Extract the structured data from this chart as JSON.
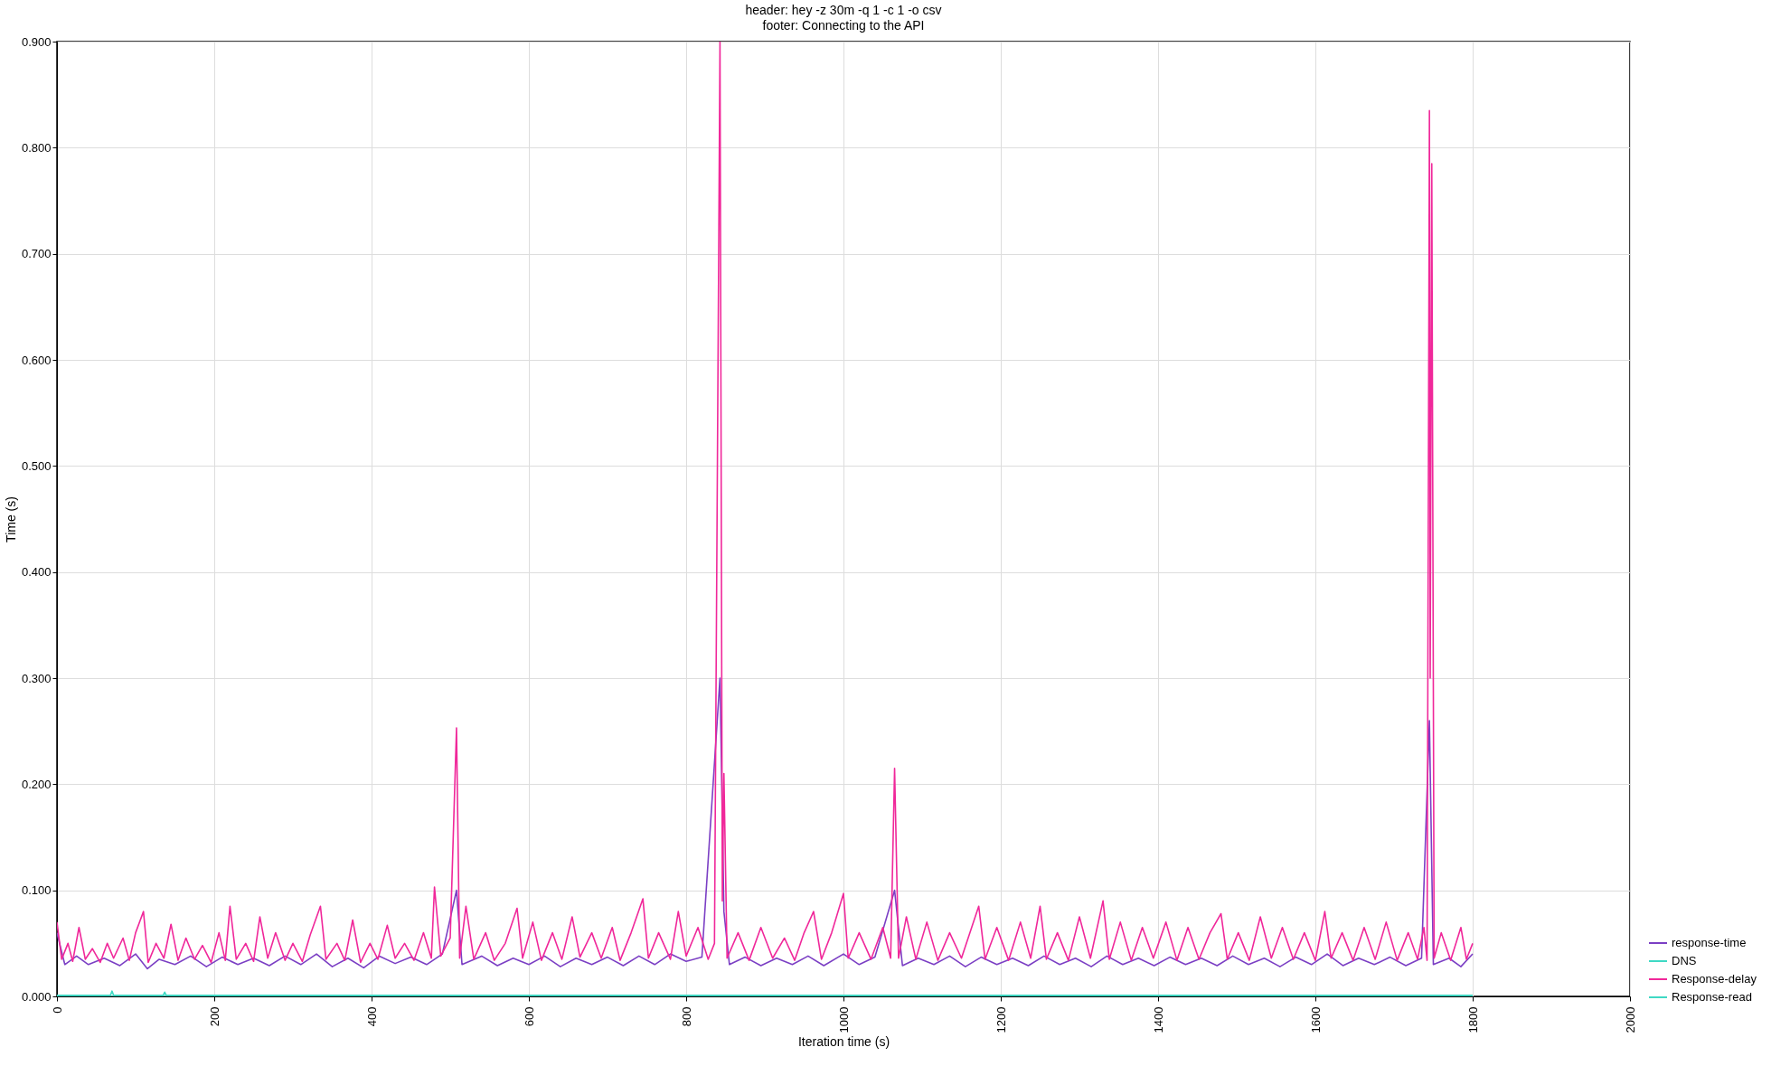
{
  "chart_data": {
    "type": "line",
    "title": "header: hey -z 30m -q 1 -c 1 -o csv",
    "subtitle": "footer: Connecting to the API",
    "xlabel": "Iteration time (s)",
    "ylabel": "Time (s)",
    "xlim": [
      0,
      2000
    ],
    "xticks": [
      0,
      200,
      400,
      600,
      800,
      1000,
      1200,
      1400,
      1600,
      1800,
      2000
    ],
    "ylim": [
      0,
      0.9
    ],
    "yticks": [
      {
        "value": 0,
        "label": "0.000"
      },
      {
        "value": 0.1,
        "label": "0.100"
      },
      {
        "value": 0.2,
        "label": "0.200"
      },
      {
        "value": 0.3,
        "label": "0.300"
      },
      {
        "value": 0.4,
        "label": "0.400"
      },
      {
        "value": 0.5,
        "label": "0.500"
      },
      {
        "value": 0.6,
        "label": "0.600"
      },
      {
        "value": 0.7,
        "label": "0.700"
      },
      {
        "value": 0.8,
        "label": "0.800"
      },
      {
        "value": 0.9,
        "label": "0.900"
      }
    ],
    "grid": true,
    "legend": "bottom right",
    "marker": "none",
    "line_style": "solid",
    "series": [
      {
        "name": "response-time",
        "color": "#7b3fc4",
        "x": [
          0,
          10,
          25,
          40,
          60,
          80,
          100,
          115,
          130,
          150,
          170,
          190,
          210,
          230,
          250,
          270,
          290,
          310,
          330,
          350,
          370,
          390,
          410,
          430,
          450,
          470,
          490,
          508,
          515,
          540,
          560,
          580,
          600,
          620,
          640,
          660,
          680,
          700,
          720,
          740,
          760,
          780,
          800,
          820,
          843,
          848,
          855,
          875,
          895,
          915,
          935,
          955,
          975,
          1000,
          1020,
          1040,
          1065,
          1075,
          1095,
          1115,
          1135,
          1155,
          1175,
          1195,
          1215,
          1235,
          1255,
          1275,
          1295,
          1315,
          1335,
          1355,
          1375,
          1395,
          1415,
          1435,
          1455,
          1475,
          1495,
          1515,
          1535,
          1555,
          1575,
          1595,
          1615,
          1635,
          1655,
          1675,
          1695,
          1715,
          1735,
          1745,
          1750,
          1770,
          1785,
          1800
        ],
        "values": [
          0.06,
          0.03,
          0.038,
          0.03,
          0.036,
          0.029,
          0.04,
          0.026,
          0.035,
          0.03,
          0.038,
          0.028,
          0.037,
          0.03,
          0.036,
          0.029,
          0.038,
          0.03,
          0.04,
          0.028,
          0.036,
          0.027,
          0.038,
          0.031,
          0.037,
          0.03,
          0.04,
          0.1,
          0.03,
          0.038,
          0.029,
          0.036,
          0.03,
          0.038,
          0.028,
          0.036,
          0.03,
          0.037,
          0.029,
          0.038,
          0.03,
          0.04,
          0.033,
          0.037,
          0.3,
          0.08,
          0.03,
          0.037,
          0.029,
          0.036,
          0.03,
          0.038,
          0.029,
          0.04,
          0.03,
          0.037,
          0.1,
          0.029,
          0.036,
          0.03,
          0.038,
          0.028,
          0.037,
          0.03,
          0.036,
          0.029,
          0.038,
          0.03,
          0.036,
          0.028,
          0.038,
          0.03,
          0.036,
          0.029,
          0.037,
          0.03,
          0.036,
          0.029,
          0.038,
          0.03,
          0.036,
          0.028,
          0.037,
          0.03,
          0.04,
          0.029,
          0.036,
          0.03,
          0.037,
          0.029,
          0.036,
          0.26,
          0.03,
          0.036,
          0.028,
          0.04
        ]
      },
      {
        "name": "DNS",
        "color": "#3fd9c4",
        "x": [
          0,
          68,
          70,
          72,
          135,
          137,
          139,
          1800
        ],
        "values": [
          0.001,
          0.001,
          0.005,
          0.001,
          0.001,
          0.004,
          0.001,
          0.001
        ]
      },
      {
        "name": "Response-delay",
        "color": "#f0289a",
        "x": [
          0,
          6,
          14,
          20,
          28,
          36,
          45,
          55,
          64,
          72,
          84,
          92,
          100,
          110,
          116,
          126,
          136,
          145,
          154,
          164,
          175,
          185,
          196,
          206,
          214,
          220,
          228,
          240,
          250,
          258,
          268,
          278,
          290,
          300,
          312,
          322,
          335,
          342,
          356,
          366,
          376,
          386,
          398,
          408,
          420,
          430,
          442,
          454,
          466,
          476,
          480,
          488,
          500,
          508,
          512,
          520,
          530,
          545,
          556,
          570,
          585,
          592,
          605,
          616,
          630,
          642,
          655,
          665,
          680,
          692,
          706,
          716,
          730,
          745,
          752,
          765,
          780,
          790,
          800,
          815,
          828,
          836,
          843,
          846,
          848,
          852,
          866,
          880,
          895,
          910,
          925,
          938,
          950,
          962,
          972,
          985,
          1000,
          1006,
          1020,
          1035,
          1050,
          1060,
          1065,
          1070,
          1080,
          1092,
          1106,
          1120,
          1135,
          1150,
          1163,
          1172,
          1180,
          1195,
          1210,
          1225,
          1238,
          1250,
          1258,
          1272,
          1286,
          1300,
          1314,
          1330,
          1338,
          1352,
          1366,
          1380,
          1394,
          1410,
          1424,
          1438,
          1452,
          1466,
          1480,
          1488,
          1502,
          1516,
          1530,
          1544,
          1558,
          1572,
          1586,
          1600,
          1612,
          1620,
          1634,
          1648,
          1662,
          1676,
          1690,
          1704,
          1718,
          1730,
          1738,
          1742,
          1745,
          1746,
          1748,
          1751,
          1760,
          1772,
          1785,
          1792,
          1800
        ],
        "values": [
          0.07,
          0.035,
          0.05,
          0.033,
          0.065,
          0.035,
          0.045,
          0.032,
          0.05,
          0.036,
          0.055,
          0.034,
          0.06,
          0.08,
          0.032,
          0.05,
          0.036,
          0.068,
          0.034,
          0.055,
          0.035,
          0.048,
          0.032,
          0.06,
          0.034,
          0.085,
          0.035,
          0.05,
          0.033,
          0.075,
          0.036,
          0.06,
          0.034,
          0.05,
          0.033,
          0.058,
          0.085,
          0.035,
          0.05,
          0.034,
          0.072,
          0.032,
          0.05,
          0.035,
          0.067,
          0.036,
          0.05,
          0.034,
          0.06,
          0.036,
          0.103,
          0.038,
          0.055,
          0.253,
          0.036,
          0.085,
          0.035,
          0.06,
          0.034,
          0.05,
          0.083,
          0.036,
          0.07,
          0.034,
          0.06,
          0.035,
          0.075,
          0.037,
          0.06,
          0.036,
          0.065,
          0.034,
          0.06,
          0.092,
          0.036,
          0.06,
          0.035,
          0.08,
          0.038,
          0.065,
          0.035,
          0.05,
          0.9,
          0.09,
          0.21,
          0.036,
          0.06,
          0.034,
          0.065,
          0.036,
          0.055,
          0.034,
          0.06,
          0.08,
          0.035,
          0.06,
          0.097,
          0.036,
          0.06,
          0.035,
          0.065,
          0.036,
          0.215,
          0.036,
          0.075,
          0.035,
          0.07,
          0.034,
          0.06,
          0.036,
          0.065,
          0.085,
          0.035,
          0.065,
          0.034,
          0.07,
          0.036,
          0.085,
          0.035,
          0.06,
          0.034,
          0.075,
          0.036,
          0.09,
          0.035,
          0.07,
          0.034,
          0.065,
          0.036,
          0.07,
          0.034,
          0.065,
          0.035,
          0.06,
          0.078,
          0.035,
          0.06,
          0.034,
          0.075,
          0.036,
          0.065,
          0.035,
          0.06,
          0.034,
          0.08,
          0.036,
          0.06,
          0.034,
          0.065,
          0.035,
          0.07,
          0.034,
          0.06,
          0.035,
          0.065,
          0.034,
          0.835,
          0.3,
          0.785,
          0.036,
          0.06,
          0.034,
          0.065,
          0.035,
          0.05
        ]
      },
      {
        "name": "Response-read",
        "color": "#3fd9c4",
        "x": [
          0,
          1800
        ],
        "values": [
          0,
          0
        ]
      }
    ]
  }
}
